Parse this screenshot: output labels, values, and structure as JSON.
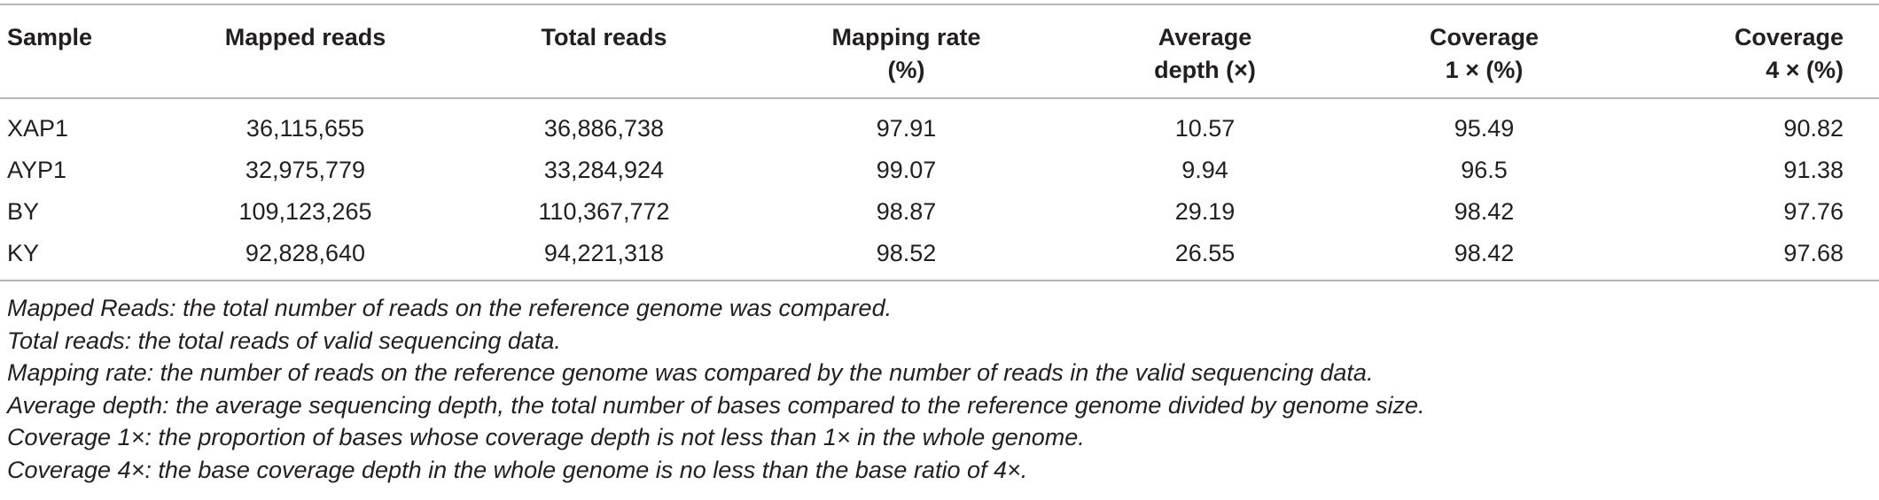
{
  "table": {
    "columns": [
      "Sample",
      "Mapped reads",
      "Total reads",
      "Mapping rate (%)",
      "Average depth (×)",
      "Coverage 1 × (%)",
      "Coverage 4 × (%)"
    ],
    "header_lines": [
      [
        "Sample",
        ""
      ],
      [
        "Mapped reads",
        ""
      ],
      [
        "Total reads",
        ""
      ],
      [
        "Mapping rate",
        "(%)"
      ],
      [
        "Average",
        "depth (×)"
      ],
      [
        "Coverage",
        "1 × (%)"
      ],
      [
        "Coverage",
        "4 × (%)"
      ]
    ],
    "rows": [
      [
        "XAP1",
        "36,115,655",
        "36,886,738",
        "97.91",
        "10.57",
        "95.49",
        "90.82"
      ],
      [
        "AYP1",
        "32,975,779",
        "33,284,924",
        "99.07",
        "9.94",
        "96.5",
        "91.38"
      ],
      [
        "BY",
        "109,123,265",
        "110,367,772",
        "98.87",
        "29.19",
        "98.42",
        "97.76"
      ],
      [
        "KY",
        "92,828,640",
        "94,221,318",
        "98.52",
        "26.55",
        "98.42",
        "97.68"
      ]
    ]
  },
  "footnotes": [
    "Mapped Reads: the total number of reads on the reference genome was compared.",
    "Total reads: the total reads of valid sequencing data.",
    "Mapping rate: the number of reads on the reference genome was compared by the number of reads in the valid sequencing data.",
    "Average depth: the average sequencing depth, the total number of bases compared to the reference genome divided by genome size.",
    "Coverage 1×: the proportion of bases whose coverage depth is not less than 1× in the whole genome.",
    "Coverage 4×: the base coverage depth in the whole genome is no less than the base ratio of 4×."
  ]
}
